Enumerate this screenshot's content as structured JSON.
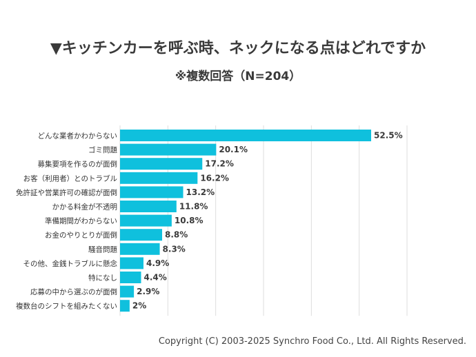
{
  "title": "▼キッチンカーを呼ぶ時、ネックになる点はどれですか",
  "subtitle": "※複数回答（N=204）",
  "footer": "Copyright (C) 2003-2025  Synchro Food Co., Ltd. All Rights Reserved.",
  "colors": {
    "bar": "#0fc0dd",
    "grid": "#dddddd"
  },
  "chart_data": {
    "type": "bar",
    "orientation": "horizontal",
    "title": "▼キッチンカーを呼ぶ時、ネックになる点はどれですか",
    "subtitle": "※複数回答（N=204）",
    "xlim": [
      0,
      60
    ],
    "grid": true,
    "categories": [
      "どんな業者かわからない",
      "ゴミ問題",
      "募集要項を作るのが面倒",
      "お客（利用者）とのトラブル",
      "免許証や営業許可の確認が面倒",
      "かかる料金が不透明",
      "準備期間がわからない",
      "お金のやりとりが面倒",
      "騒音問題",
      "その他、金銭トラブルに懸念",
      "特になし",
      "応募の中から選ぶのが面倒",
      "複数台のシフトを組みたくない"
    ],
    "values": [
      52.5,
      20.1,
      17.2,
      16.2,
      13.2,
      11.8,
      10.8,
      8.8,
      8.3,
      4.9,
      4.4,
      2.9,
      2
    ],
    "value_labels": [
      "52.5%",
      "20.1%",
      "17.2%",
      "16.2%",
      "13.2%",
      "11.8%",
      "10.8%",
      "8.8%",
      "8.3%",
      "4.9%",
      "4.4%",
      "2.9%",
      "2%"
    ]
  }
}
